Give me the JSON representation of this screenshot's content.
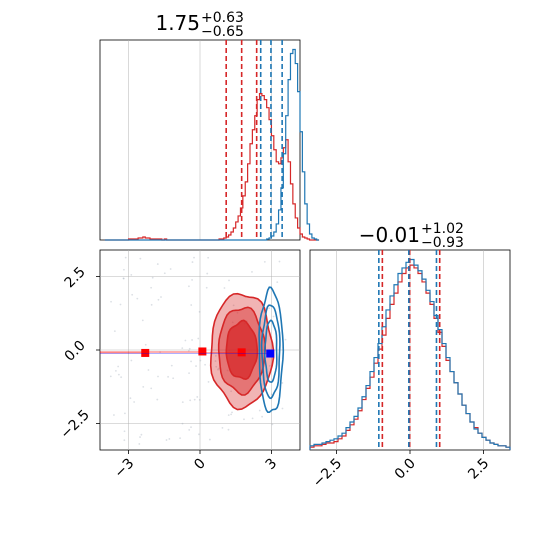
{
  "chart_data": [
    {
      "type": "histogram",
      "panel": "top-left",
      "title": {
        "value": "1.75",
        "upper": "+0.63",
        "lower": "−0.65"
      },
      "xlim": [
        -4.2,
        4.2
      ],
      "grid": true,
      "bins": {
        "start": -4.0,
        "width": 0.1
      },
      "series": [
        {
          "color": "#d62728",
          "counts": [
            0,
            0,
            0,
            0,
            0,
            0,
            0,
            0,
            0,
            0,
            1,
            1,
            1,
            1,
            2,
            2,
            3,
            2,
            2,
            1,
            1,
            1,
            1,
            1,
            0,
            1,
            0,
            0,
            0,
            0,
            0,
            0,
            0,
            0,
            0,
            0,
            0,
            0,
            0,
            0,
            0,
            0,
            0,
            0,
            0,
            0,
            0,
            0,
            1,
            1,
            2,
            3,
            5,
            8,
            12,
            18,
            24,
            32,
            44,
            58,
            76,
            96,
            110,
            124,
            140,
            146,
            144,
            140,
            132,
            120,
            104,
            90,
            78,
            76,
            82,
            92,
            100,
            78,
            56,
            36,
            22,
            12,
            6,
            3,
            2,
            1,
            0,
            0,
            0,
            0
          ],
          "quantile_lines": [
            1.1,
            1.75,
            2.38
          ]
        },
        {
          "color": "#1f77b4",
          "counts": [
            0,
            0,
            0,
            0,
            0,
            0,
            0,
            0,
            0,
            0,
            0,
            0,
            0,
            0,
            0,
            0,
            0,
            0,
            0,
            0,
            0,
            0,
            0,
            0,
            0,
            0,
            0,
            0,
            0,
            0,
            0,
            0,
            0,
            0,
            0,
            0,
            0,
            0,
            0,
            0,
            0,
            0,
            0,
            0,
            0,
            0,
            0,
            0,
            0,
            0,
            0,
            0,
            0,
            0,
            0,
            0,
            0,
            0,
            0,
            0,
            0,
            0,
            0,
            0,
            0,
            0,
            0,
            0,
            1,
            2,
            4,
            8,
            16,
            30,
            52,
            86,
            124,
            160,
            186,
            190,
            176,
            148,
            108,
            68,
            36,
            16,
            6,
            2,
            1,
            0
          ],
          "quantile_lines": [
            2.55,
            2.98,
            3.45
          ]
        }
      ]
    },
    {
      "type": "contour",
      "panel": "bottom-left",
      "xlim": [
        -4.2,
        4.2
      ],
      "ylim": [
        -3.4,
        3.4
      ],
      "xticks": [
        "−3",
        "0",
        "3"
      ],
      "yticks": [
        "2.5",
        "0.0",
        "−2.5"
      ],
      "grid": true,
      "series": [
        {
          "color": "#d62728",
          "center": [
            1.75,
            -0.01
          ],
          "sigma": [
            0.65,
            0.97
          ],
          "filled": true
        },
        {
          "color": "#1f77b4",
          "center": [
            2.98,
            -0.05
          ],
          "sigma": [
            0.25,
            1.05
          ],
          "filled": false
        }
      ],
      "markers": [
        {
          "color": "#ff0000",
          "x": -2.3,
          "y": -0.1
        },
        {
          "color": "#ff0000",
          "x": 0.1,
          "y": -0.05
        },
        {
          "color": "#ff0000",
          "x": 1.75,
          "y": -0.08
        },
        {
          "color": "#0000ff",
          "x": 2.95,
          "y": -0.12
        }
      ],
      "reference_lines": {
        "x": [],
        "y": [
          2.5,
          0.0,
          -2.5
        ]
      }
    },
    {
      "type": "histogram",
      "panel": "bottom-right",
      "title": {
        "value": "−0.01",
        "upper": "+1.02",
        "lower": "−0.93"
      },
      "xlim": [
        -3.4,
        3.4
      ],
      "xticks": [
        "−2.5",
        "0.0",
        "2.5"
      ],
      "grid": true,
      "bins": {
        "start": -3.4,
        "width": 0.136
      },
      "series": [
        {
          "color": "#d62728",
          "counts": [
            2,
            3,
            3,
            4,
            5,
            5,
            6,
            8,
            10,
            14,
            18,
            22,
            28,
            36,
            44,
            52,
            62,
            72,
            82,
            94,
            104,
            112,
            120,
            126,
            130,
            132,
            130,
            126,
            120,
            112,
            104,
            94,
            84,
            74,
            64,
            56,
            48,
            40,
            32,
            26,
            20,
            16,
            12,
            9,
            7,
            5,
            4,
            3,
            3,
            2
          ],
          "quantile_lines": [
            -0.94,
            -0.01,
            1.01
          ]
        },
        {
          "color": "#1f77b4",
          "counts": [
            3,
            4,
            4,
            5,
            6,
            7,
            8,
            10,
            12,
            16,
            20,
            24,
            30,
            38,
            46,
            56,
            66,
            76,
            88,
            100,
            110,
            118,
            126,
            130,
            134,
            136,
            132,
            128,
            122,
            114,
            106,
            96,
            86,
            76,
            66,
            56,
            48,
            40,
            32,
            26,
            20,
            15,
            12,
            9,
            7,
            5,
            4,
            3,
            3,
            2
          ],
          "quantile_lines": [
            -1.06,
            -0.04,
            0.9
          ]
        }
      ]
    }
  ]
}
